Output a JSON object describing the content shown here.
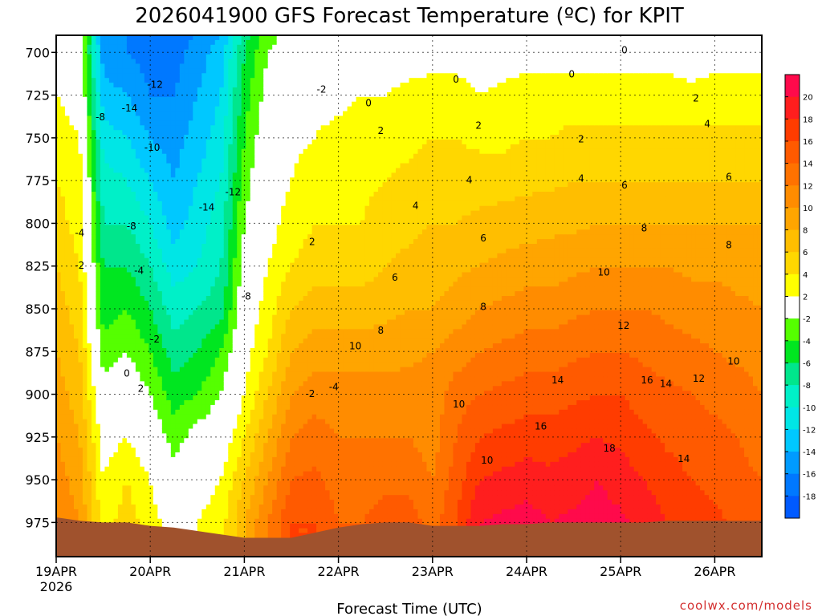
{
  "title": "2026041900 GFS Forecast Temperature (ºC) for KPIT",
  "credit": "coolwx.com/models",
  "chart_data": {
    "type": "heatmap",
    "title": "2026041900 GFS Forecast Temperature (ºC) for KPIT",
    "xlabel": "Forecast Time (UTC)",
    "ylabel": "",
    "x_ticks": [
      "19APR",
      "20APR",
      "21APR",
      "22APR",
      "23APR",
      "24APR",
      "25APR",
      "26APR"
    ],
    "x_year": "2026",
    "x_range_days": [
      0,
      7.5
    ],
    "y_ticks": [
      700,
      725,
      750,
      775,
      800,
      825,
      850,
      875,
      900,
      925,
      950,
      975
    ],
    "y_range": [
      690,
      995
    ],
    "y_inverted": true,
    "colorbar": {
      "labels": [
        "20",
        "18",
        "16",
        "14",
        "12",
        "10",
        "8",
        "6",
        "4",
        "2",
        "-2",
        "-4",
        "-6",
        "-8",
        "-10",
        "-12",
        "-14",
        "-16",
        "-18"
      ],
      "colors": [
        "#ff0a4b",
        "#ff1e1e",
        "#ff3c00",
        "#ff5a00",
        "#ff7200",
        "#ff8c00",
        "#ffa500",
        "#ffbe00",
        "#ffd700",
        "#ffff00",
        "#ffffff",
        "#55ff00",
        "#00e620",
        "#00e68c",
        "#00f0c8",
        "#00e6e6",
        "#00c8ff",
        "#009bff",
        "#0078ff",
        "#005aff"
      ]
    },
    "temperature_grid": {
      "times_days": [
        0,
        0.25,
        0.5,
        0.75,
        1,
        1.25,
        1.5,
        1.75,
        2,
        2.25,
        2.5,
        2.75,
        3,
        3.25,
        3.5,
        3.75,
        4,
        4.25,
        4.5,
        4.75,
        5,
        5.25,
        5.5,
        5.75,
        6,
        6.25,
        6.5,
        6.75,
        7,
        7.25,
        7.5
      ],
      "levels_hpa": [
        690,
        700,
        725,
        750,
        775,
        800,
        825,
        850,
        875,
        900,
        925,
        950,
        975,
        995
      ],
      "rows": [
        [
          1,
          1,
          -16,
          -16,
          -17,
          -17,
          -16,
          -14,
          -7,
          -3,
          -1,
          0.5,
          0.5,
          0.5,
          0.5,
          0.5,
          0.5,
          0.5,
          0.5,
          0.5,
          0.5,
          0.5,
          0.5,
          0.5,
          0.5,
          0.5,
          0.5,
          0.5,
          0.5,
          0.5,
          0.5
        ],
        [
          1,
          0,
          -15,
          -16,
          -17,
          -17,
          -15,
          -13,
          -6,
          -2,
          0,
          1,
          1,
          1,
          1,
          1,
          1,
          1,
          0.5,
          1,
          1,
          1,
          1,
          1,
          1,
          1,
          1,
          0,
          1,
          1,
          1
        ],
        [
          2,
          1,
          -13,
          -14,
          -16,
          -16,
          -14,
          -12,
          -5,
          -1,
          1,
          1.5,
          1.5,
          2,
          2,
          2.5,
          3,
          3,
          2,
          2.5,
          3,
          3,
          3,
          3,
          3,
          3,
          3,
          3,
          3,
          3,
          3
        ],
        [
          3,
          2,
          -11,
          -12,
          -14,
          -15,
          -13,
          -11,
          -4,
          0,
          1.5,
          2,
          2.5,
          3,
          3,
          3.5,
          4,
          4,
          3.5,
          3.5,
          4,
          4,
          4.5,
          4.5,
          4.5,
          4.5,
          4.5,
          4.5,
          4.5,
          4.5,
          4.5
        ],
        [
          4,
          3,
          -9,
          -10,
          -12,
          -14,
          -12,
          -10,
          -3,
          0.5,
          2,
          3,
          3,
          3.5,
          4,
          4.5,
          5,
          5,
          5,
          5,
          5.5,
          5.5,
          6,
          6,
          6,
          6,
          6,
          6,
          6,
          6,
          6
        ],
        [
          5,
          3,
          -8,
          -8,
          -10,
          -13,
          -11,
          -9,
          -2,
          1,
          3,
          4,
          4,
          4,
          5,
          5.5,
          6,
          6,
          6.5,
          7,
          7,
          7.5,
          7.5,
          8,
          8,
          8,
          8,
          8,
          8,
          8,
          8
        ],
        [
          6,
          4,
          -6,
          -6,
          -8,
          -11,
          -10,
          -8,
          -1,
          2,
          4,
          5,
          5,
          5,
          6,
          6.5,
          7,
          7.5,
          8,
          8.5,
          9,
          9,
          9.5,
          10,
          10,
          10,
          10,
          9.5,
          9.5,
          9,
          9
        ],
        [
          7,
          5,
          -5,
          -4,
          -6,
          -9,
          -8,
          -7,
          0,
          3,
          6,
          7,
          7,
          7,
          7.5,
          8,
          8,
          9,
          10,
          10.5,
          11,
          11,
          11.5,
          12,
          12,
          12,
          11.5,
          11,
          11,
          10.5,
          10
        ],
        [
          8,
          6,
          -3,
          -2,
          -4,
          -7,
          -6,
          -4,
          1,
          4,
          8,
          9,
          9,
          9,
          9,
          9.5,
          10,
          11,
          12,
          12.5,
          13,
          13,
          13.5,
          14,
          14,
          13.5,
          13,
          12.5,
          12,
          11.5,
          11
        ],
        [
          9,
          7,
          -1,
          0,
          -2,
          -5,
          -4,
          -2,
          2,
          6,
          10,
          11,
          11,
          11,
          11,
          11,
          11,
          13,
          14,
          14.5,
          15,
          15,
          15.5,
          16,
          16,
          15,
          14.5,
          14,
          13.5,
          13,
          12
        ],
        [
          10,
          8,
          1,
          2,
          0,
          -3,
          -1,
          0,
          4,
          8,
          12,
          13,
          12,
          12,
          12,
          12,
          11,
          14,
          16,
          16.5,
          17,
          17,
          17.5,
          18,
          17.5,
          16.5,
          15.5,
          15,
          14.5,
          14,
          13
        ],
        [
          11,
          9,
          2,
          4,
          2,
          -1,
          1,
          2,
          6,
          10,
          14,
          14.5,
          13,
          13,
          13.5,
          13.5,
          12,
          15,
          18,
          18.5,
          19,
          18.5,
          19,
          20,
          19,
          18,
          17,
          16,
          15.5,
          14.5,
          14
        ],
        [
          12,
          10,
          3,
          5,
          3,
          1,
          2,
          3,
          8,
          12,
          16,
          16,
          14,
          14,
          15,
          15,
          13,
          16,
          20,
          20.5,
          21,
          20,
          20.5,
          21,
          20.5,
          19,
          18,
          17,
          16.5,
          15.5,
          15
        ],
        [
          12,
          10,
          3,
          5,
          3,
          1,
          2,
          3,
          8,
          12,
          16,
          16,
          14,
          14,
          15,
          15,
          13,
          16,
          20,
          20.5,
          21,
          20,
          20.5,
          21,
          20.5,
          19,
          18,
          17,
          16.5,
          15.5,
          15
        ]
      ]
    },
    "contour_labels": [
      {
        "text": "0",
        "day": 6.04,
        "p": 699
      },
      {
        "text": "0",
        "day": 5.48,
        "p": 713
      },
      {
        "text": "0",
        "day": 4.25,
        "p": 716
      },
      {
        "text": "0",
        "day": 3.32,
        "p": 730
      },
      {
        "text": "-2",
        "day": 2.82,
        "p": 722
      },
      {
        "text": "2",
        "day": 6.8,
        "p": 727
      },
      {
        "text": "2",
        "day": 3.45,
        "p": 746
      },
      {
        "text": "2",
        "day": 4.49,
        "p": 743
      },
      {
        "text": "2",
        "day": 5.58,
        "p": 751
      },
      {
        "text": "4",
        "day": 6.92,
        "p": 742
      },
      {
        "text": "4",
        "day": 4.39,
        "p": 775
      },
      {
        "text": "4",
        "day": 5.58,
        "p": 774
      },
      {
        "text": "4",
        "day": 3.82,
        "p": 790
      },
      {
        "text": "6",
        "day": 7.15,
        "p": 773
      },
      {
        "text": "6",
        "day": 6.04,
        "p": 778
      },
      {
        "text": "6",
        "day": 4.54,
        "p": 809
      },
      {
        "text": "6",
        "day": 3.6,
        "p": 832
      },
      {
        "text": "8",
        "day": 6.25,
        "p": 803
      },
      {
        "text": "8",
        "day": 7.15,
        "p": 813
      },
      {
        "text": "8",
        "day": 4.54,
        "p": 849
      },
      {
        "text": "8",
        "day": 3.45,
        "p": 863
      },
      {
        "text": "10",
        "day": 5.82,
        "p": 829
      },
      {
        "text": "10",
        "day": 7.2,
        "p": 881
      },
      {
        "text": "10",
        "day": 3.18,
        "p": 872
      },
      {
        "text": "10",
        "day": 4.28,
        "p": 906
      },
      {
        "text": "10",
        "day": 4.58,
        "p": 939
      },
      {
        "text": "12",
        "day": 6.03,
        "p": 860
      },
      {
        "text": "12",
        "day": 6.83,
        "p": 891
      },
      {
        "text": "14",
        "day": 5.33,
        "p": 892
      },
      {
        "text": "14",
        "day": 6.48,
        "p": 894
      },
      {
        "text": "14",
        "day": 6.67,
        "p": 938
      },
      {
        "text": "16",
        "day": 6.28,
        "p": 892
      },
      {
        "text": "16",
        "day": 5.15,
        "p": 919
      },
      {
        "text": "18",
        "day": 5.88,
        "p": 932
      },
      {
        "text": "-2",
        "day": 1.05,
        "p": 868
      },
      {
        "text": "-2",
        "day": 2.7,
        "p": 900
      },
      {
        "text": "-4",
        "day": 2.95,
        "p": 896
      },
      {
        "text": "-4",
        "day": 0.88,
        "p": 828
      },
      {
        "text": "-4",
        "day": 0.25,
        "p": 806
      },
      {
        "text": "-2",
        "day": 0.25,
        "p": 825
      },
      {
        "text": "0",
        "day": 0.75,
        "p": 888
      },
      {
        "text": "2",
        "day": 0.9,
        "p": 897
      },
      {
        "text": "2",
        "day": 2.72,
        "p": 811
      },
      {
        "text": "-8",
        "day": 0.47,
        "p": 738
      },
      {
        "text": "-8",
        "day": 0.8,
        "p": 802
      },
      {
        "text": "-8",
        "day": 2.02,
        "p": 843
      },
      {
        "text": "-10",
        "day": 1.02,
        "p": 756
      },
      {
        "text": "-12",
        "day": 1.05,
        "p": 719
      },
      {
        "text": "-12",
        "day": 1.88,
        "p": 782
      },
      {
        "text": "-14",
        "day": 0.78,
        "p": 733
      },
      {
        "text": "-14",
        "day": 1.6,
        "p": 791
      }
    ],
    "ground_pressure_hpa": [
      972,
      974,
      975,
      975,
      977,
      978,
      980,
      982,
      984,
      984,
      984,
      981,
      978,
      976,
      975,
      975,
      977,
      977,
      977,
      976,
      976,
      975,
      975,
      975,
      975,
      975,
      974,
      974,
      974,
      974,
      974
    ]
  }
}
